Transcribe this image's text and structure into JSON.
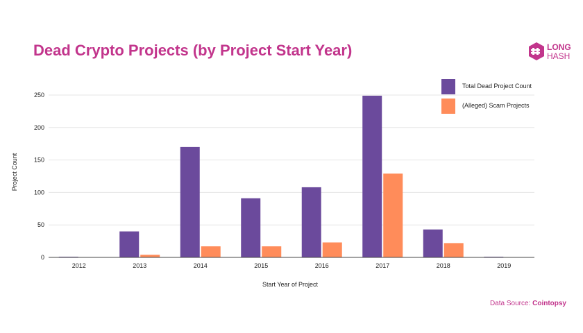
{
  "title": "Dead Crypto Projects (by Project Start Year)",
  "logo": {
    "line1": "LONG",
    "line2": "HASH",
    "icon": "longhash-logo-icon"
  },
  "source": {
    "prefix": "Data Source: ",
    "name": "Cointopsy"
  },
  "colors": {
    "title": "#c2358c",
    "series1": "#6b4a9c",
    "series2": "#ff8c5a",
    "grid": "#e6e6e6",
    "axis": "#444444"
  },
  "chart_data": {
    "type": "bar",
    "title": "Dead Crypto Projects (by Project Start Year)",
    "xlabel": "Start Year of Project",
    "ylabel": "Project Count",
    "categories": [
      "2012",
      "2013",
      "2014",
      "2015",
      "2016",
      "2017",
      "2018",
      "2019"
    ],
    "series": [
      {
        "name": "Total Dead Project Count",
        "values": [
          1,
          40,
          170,
          91,
          108,
          249,
          43,
          1
        ]
      },
      {
        "name": "(Alleged) Scam Projects",
        "values": [
          0,
          4,
          17,
          17,
          23,
          129,
          22,
          0
        ]
      }
    ],
    "ylim": [
      0,
      250
    ],
    "yticks": [
      "0",
      "50",
      "100",
      "150",
      "200",
      "250"
    ],
    "grid": true,
    "legend_position": "top-right"
  }
}
